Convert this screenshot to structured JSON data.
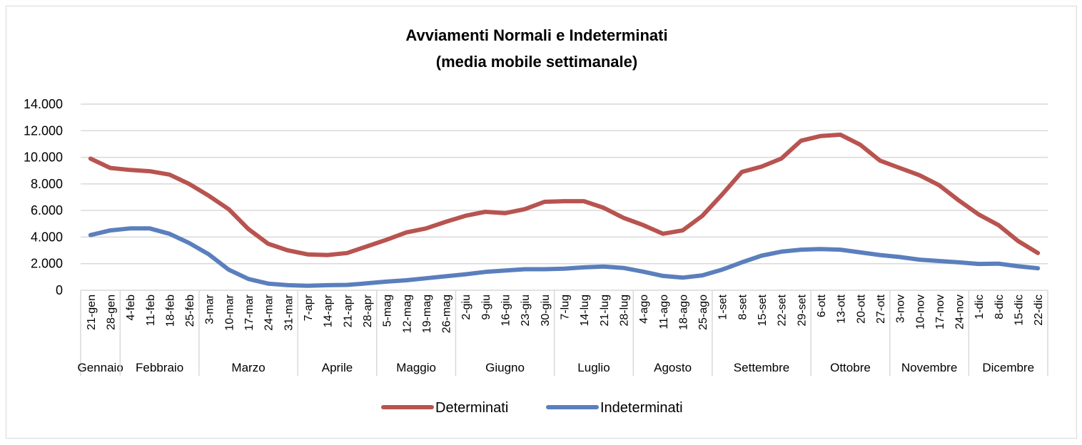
{
  "chart_data": {
    "type": "line",
    "title": [
      "Avviamenti Normali e Indeterminati",
      "(media mobile settimanale)"
    ],
    "xlabel": "",
    "ylabel": "",
    "ylim": [
      0,
      14000
    ],
    "yticks": [
      0,
      2000,
      4000,
      6000,
      8000,
      10000,
      12000,
      14000
    ],
    "ytick_labels": [
      "0",
      "2.000",
      "4.000",
      "6.000",
      "8.000",
      "10.000",
      "12.000",
      "14.000"
    ],
    "grid": true,
    "legend_position": "bottom",
    "categories": [
      "21-gen",
      "28-gen",
      "4-feb",
      "11-feb",
      "18-feb",
      "25-feb",
      "3-mar",
      "10-mar",
      "17-mar",
      "24-mar",
      "31-mar",
      "7-apr",
      "14-apr",
      "21-apr",
      "28-apr",
      "5-mag",
      "12-mag",
      "19-mag",
      "26-mag",
      "2-giu",
      "9-giu",
      "16-giu",
      "23-giu",
      "30-giu",
      "7-lug",
      "14-lug",
      "21-lug",
      "28-lug",
      "4-ago",
      "11-ago",
      "18-ago",
      "25-ago",
      "1-set",
      "8-set",
      "15-set",
      "22-set",
      "29-set",
      "6-ott",
      "13-ott",
      "20-ott",
      "27-ott",
      "3-nov",
      "10-nov",
      "17-nov",
      "24-nov",
      "1-dic",
      "8-dic",
      "15-dic",
      "22-dic"
    ],
    "months": [
      {
        "name": "Gennaio",
        "count": 2
      },
      {
        "name": "Febbraio",
        "count": 4
      },
      {
        "name": "Marzo",
        "count": 5
      },
      {
        "name": "Aprile",
        "count": 4
      },
      {
        "name": "Maggio",
        "count": 4
      },
      {
        "name": "Giugno",
        "count": 5
      },
      {
        "name": "Luglio",
        "count": 4
      },
      {
        "name": "Agosto",
        "count": 4
      },
      {
        "name": "Settembre",
        "count": 5
      },
      {
        "name": "Ottobre",
        "count": 4
      },
      {
        "name": "Novembre",
        "count": 4
      },
      {
        "name": "Dicembre",
        "count": 4
      }
    ],
    "series": [
      {
        "name": "Determinati",
        "color": "#B85450",
        "values": [
          9900,
          9200,
          9050,
          8950,
          8700,
          8000,
          7100,
          6100,
          4600,
          3500,
          3000,
          2700,
          2650,
          2800,
          3300,
          3800,
          4350,
          4650,
          5150,
          5600,
          5900,
          5800,
          6100,
          6650,
          6700,
          6700,
          6200,
          5450,
          4900,
          4250,
          4500,
          5600,
          7200,
          8900,
          9300,
          9900,
          11250,
          11600,
          11700,
          10950,
          9750,
          9200,
          8650,
          7900,
          6750,
          5700,
          4900,
          3700,
          2800
        ]
      },
      {
        "name": "Indeterminati",
        "color": "#5B7FBD",
        "values": [
          4150,
          4500,
          4650,
          4650,
          4250,
          3550,
          2700,
          1550,
          850,
          500,
          380,
          330,
          380,
          400,
          520,
          650,
          750,
          900,
          1050,
          1200,
          1380,
          1480,
          1580,
          1580,
          1620,
          1720,
          1780,
          1680,
          1400,
          1080,
          950,
          1120,
          1550,
          2100,
          2600,
          2900,
          3050,
          3100,
          3050,
          2850,
          2650,
          2500,
          2300,
          2200,
          2100,
          1980,
          2000,
          1800,
          1650
        ]
      }
    ]
  }
}
